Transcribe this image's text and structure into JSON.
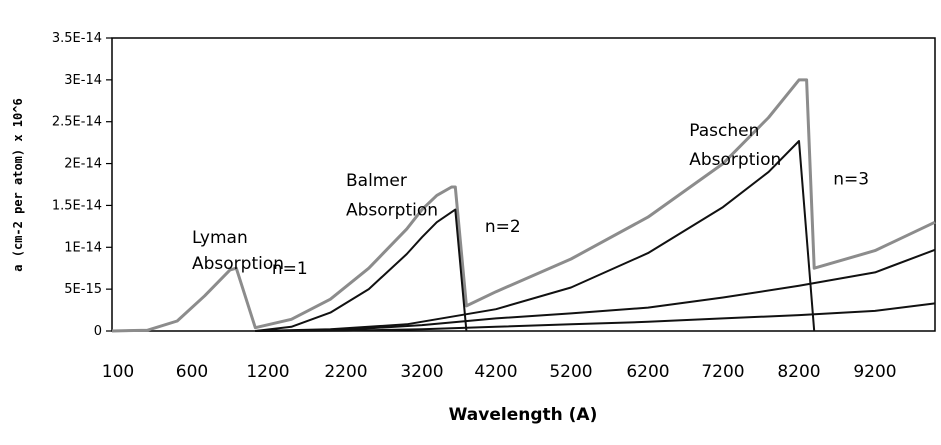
{
  "chart_data": {
    "type": "line",
    "xlabel": "Wavelength (A)",
    "ylabel": "a (cm-2 per atom) x 10^6",
    "x_tick_labels": [
      "100",
      "600",
      "1200",
      "2200",
      "3200",
      "4200",
      "5200",
      "6200",
      "7200",
      "8200",
      "9200"
    ],
    "y_tick_labels": [
      "0",
      "5E-15",
      "1E-14",
      "1.5E-14",
      "2E-14",
      "2.5E-14",
      "3E-14",
      "3.5E-14"
    ],
    "ylim": [
      0,
      3.5e-14
    ],
    "grid": false,
    "legend": "none",
    "annotations": [
      {
        "text": "Lyman",
        "x": 600,
        "y": 1.05e-14
      },
      {
        "text": "Absorption",
        "x": 600,
        "y": 7.4e-15
      },
      {
        "text": "n=1",
        "x": 1250,
        "y": 6.8e-15
      },
      {
        "text": "Balmer",
        "x": 2200,
        "y": 1.73e-14
      },
      {
        "text": "Absorption",
        "x": 2200,
        "y": 1.38e-14
      },
      {
        "text": "n=2",
        "x": 4050,
        "y": 1.18e-14
      },
      {
        "text": "Paschen",
        "x": 6750,
        "y": 2.33e-14
      },
      {
        "text": "Absorption",
        "x": 6750,
        "y": 1.98e-14
      },
      {
        "text": "n=3",
        "x": 8650,
        "y": 1.75e-14
      }
    ],
    "series": [
      {
        "color": "#8c8c8c",
        "x": [
          100,
          300,
          500,
          700,
          900,
          950,
          1100,
          1500,
          2000,
          2500,
          3000,
          3200,
          3400,
          3600,
          3650,
          3800,
          4200,
          5200,
          6200,
          7200,
          7800,
          8200,
          8300,
          8400,
          9200,
          10500
        ],
        "y": [
          0,
          1e-16,
          1.2e-15,
          4.2e-15,
          7.3e-15,
          7.5e-15,
          4e-16,
          1.4e-15,
          3.8e-15,
          7.5e-15,
          1.22e-14,
          1.45e-14,
          1.62e-14,
          1.72e-14,
          1.72e-14,
          3e-15,
          4.7e-15,
          8.6e-15,
          1.36e-14,
          2e-14,
          2.55e-14,
          3e-14,
          3e-14,
          7.5e-15,
          9.6e-15,
          1.3e-14
        ]
      },
      {
        "color": "#111111",
        "x": [
          1100,
          1500,
          2000,
          2500,
          3000,
          3200,
          3400,
          3650,
          3800
        ],
        "y": [
          0,
          5e-16,
          2.2e-15,
          5e-15,
          9.2e-15,
          1.12e-14,
          1.3e-14,
          1.45e-14,
          0
        ]
      },
      {
        "color": "#111111",
        "x": [
          1100,
          2000,
          3000,
          4200,
          5200,
          6200,
          7200,
          7800,
          8200,
          8400
        ],
        "y": [
          0,
          2e-16,
          8e-16,
          2.6e-15,
          5.2e-15,
          9.3e-15,
          1.48e-14,
          1.9e-14,
          2.27e-14,
          0
        ]
      },
      {
        "color": "#111111",
        "x": [
          1100,
          2200,
          3200,
          4200,
          5200,
          6200,
          7200,
          8200,
          9200,
          10500
        ],
        "y": [
          0,
          1.5e-16,
          7e-16,
          1.5e-15,
          2.1e-15,
          2.8e-15,
          4e-15,
          5.4e-15,
          7e-15,
          9.7e-15
        ]
      },
      {
        "color": "#111111",
        "x": [
          1100,
          2200,
          3200,
          4200,
          5200,
          6200,
          7200,
          8200,
          9200,
          10500
        ],
        "y": [
          0,
          5e-17,
          2e-16,
          5e-16,
          8e-16,
          1.1e-15,
          1.5e-15,
          1.9e-15,
          2.4e-15,
          3.3e-15
        ]
      }
    ]
  }
}
